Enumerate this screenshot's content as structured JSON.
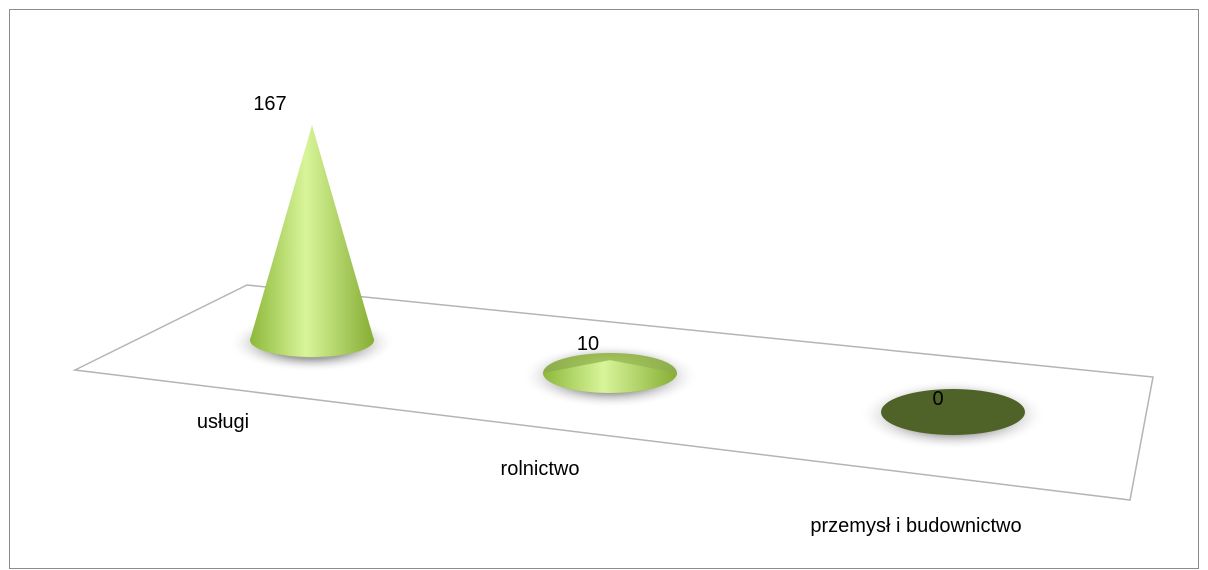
{
  "chart_data": {
    "type": "bar",
    "bar_shape": "cone",
    "three_d": true,
    "categories": [
      "usługi",
      "rolnictwo",
      "przemysł i budownictwo"
    ],
    "values": [
      167,
      10,
      0
    ],
    "data_labels": [
      "167",
      "10",
      "0"
    ],
    "title": "",
    "xlabel": "",
    "ylabel": "",
    "ylim": [
      0,
      167
    ],
    "grid": false,
    "legend": "none",
    "colors": [
      "#a4cf4c",
      "#8fb04a",
      "#4f6228"
    ]
  }
}
